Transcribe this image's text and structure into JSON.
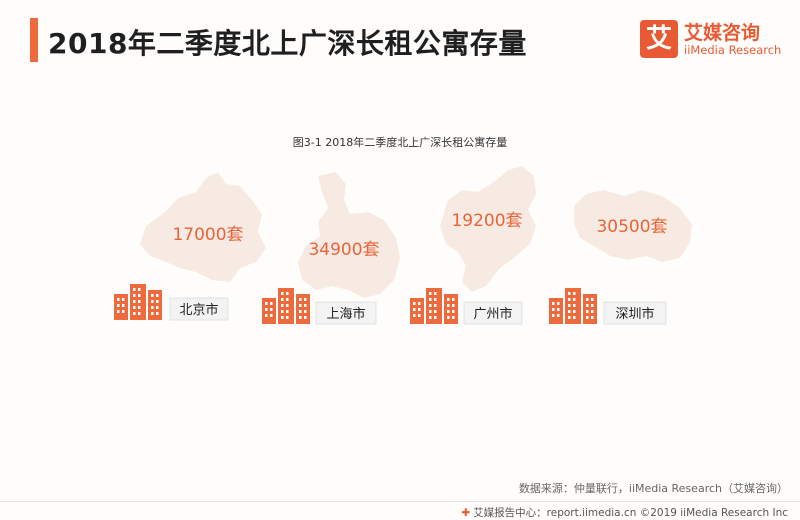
{
  "header": {
    "title": "2018年二季度北上广深长租公寓存量"
  },
  "logo": {
    "mark": "艾",
    "name_cn": "艾媒咨询",
    "name_en": "iiMedia Research"
  },
  "chart_data": {
    "type": "pictorial",
    "title": "图3-1 2018年二季度北上广深长租公寓存量",
    "unit": "套",
    "categories": [
      "北京市",
      "上海市",
      "广州市",
      "深圳市"
    ],
    "values": [
      17000,
      34900,
      19200,
      30500
    ],
    "value_labels": [
      "17000套",
      "34900套",
      "19200套",
      "30500套"
    ]
  },
  "colors": {
    "accent": "#ec6a3c",
    "map_fill": "#f7eae3",
    "value_text": "#e8653a"
  },
  "source": "数据来源：仲量联行，iiMedia Research（艾媒咨询）",
  "footer": {
    "icon": "iimedia-logo-icon",
    "text": "艾媒报告中心：report.iimedia.cn ©2019 iiMedia Research Inc"
  }
}
